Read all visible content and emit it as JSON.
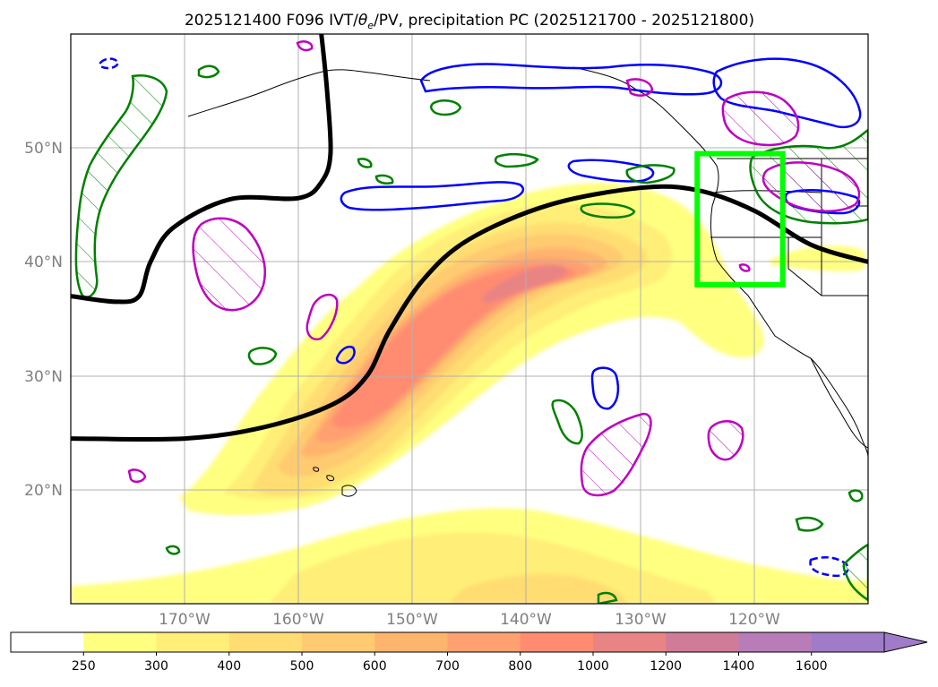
{
  "title": {
    "prefix": "2025121400 F096 IVT/",
    "theta": "θ",
    "theta_sub": "e",
    "suffix": "/PV, precipitation PC (2025121700 - 2025121800)"
  },
  "map": {
    "lon_range": [
      -180,
      -110
    ],
    "lat_range": [
      10,
      60
    ],
    "lon_ticks": [
      {
        "lon": -170,
        "label": "170°W"
      },
      {
        "lon": -160,
        "label": "160°W"
      },
      {
        "lon": -150,
        "label": "150°W"
      },
      {
        "lon": -140,
        "label": "140°W"
      },
      {
        "lon": -130,
        "label": "130°W"
      },
      {
        "lon": -120,
        "label": "120°W"
      }
    ],
    "lat_ticks": [
      {
        "lat": 20,
        "label": "20°N"
      },
      {
        "lat": 30,
        "label": "30°N"
      },
      {
        "lat": 40,
        "label": "40°N"
      },
      {
        "lat": 50,
        "label": "50°N"
      }
    ],
    "box": {
      "lon_min": -125,
      "lon_max": -117.5,
      "lat_min": 38,
      "lat_max": 49.5,
      "color": "#00ff00"
    },
    "colors": {
      "coast": "#000000",
      "pv_line": "#000000",
      "blue_contour": "#0000ff",
      "green_contour": "#008000",
      "magenta_contour": "#bf00bf",
      "grid": "#b0b0b0"
    }
  },
  "chart_data": {
    "type": "map",
    "variable": "IVT",
    "ivt_core": {
      "lon": -139,
      "lat": 39
    },
    "ivt_axis": [
      [
        -160,
        20
      ],
      [
        -153,
        29
      ],
      [
        -148,
        35
      ],
      [
        -140,
        39
      ],
      [
        -130,
        41
      ],
      [
        -122,
        38
      ]
    ],
    "pv_contour_lonlat": [
      [
        -180,
        24.5
      ],
      [
        -170,
        24.5
      ],
      [
        -163,
        25.5
      ],
      [
        -157,
        27.5
      ],
      [
        -154,
        30
      ],
      [
        -152,
        34
      ],
      [
        -149,
        38.5
      ],
      [
        -145,
        42
      ],
      [
        -138,
        45
      ],
      [
        -130,
        46.5
      ],
      [
        -125,
        46.3
      ],
      [
        -120,
        44.5
      ],
      [
        -115,
        41.5
      ],
      [
        -110,
        40
      ]
    ],
    "pv_contour_north_lonlat": [
      [
        -180,
        37
      ],
      [
        -176,
        36.5
      ],
      [
        -174,
        37
      ],
      [
        -173,
        40
      ],
      [
        -171,
        43
      ],
      [
        -166,
        45.5
      ],
      [
        -160,
        45.6
      ],
      [
        -158,
        47
      ],
      [
        -157.2,
        49.5
      ],
      [
        -157.5,
        55
      ],
      [
        -158,
        60
      ]
    ]
  },
  "colorbar": {
    "levels": [
      {
        "label": "250",
        "color": "#ffff80"
      },
      {
        "label": "300",
        "color": "#ffee77"
      },
      {
        "label": "400",
        "color": "#ffdd72"
      },
      {
        "label": "500",
        "color": "#ffca70"
      },
      {
        "label": "600",
        "color": "#ffb46e"
      },
      {
        "label": "700",
        "color": "#ffa070"
      },
      {
        "label": "800",
        "color": "#ff8c70"
      },
      {
        "label": "1000",
        "color": "#e98484"
      },
      {
        "label": "1200",
        "color": "#d07c98"
      },
      {
        "label": "1400",
        "color": "#b87cb8"
      },
      {
        "label": "1600",
        "color": "#a07cc8"
      }
    ],
    "under_color": "#ffffff",
    "extend": "max"
  }
}
